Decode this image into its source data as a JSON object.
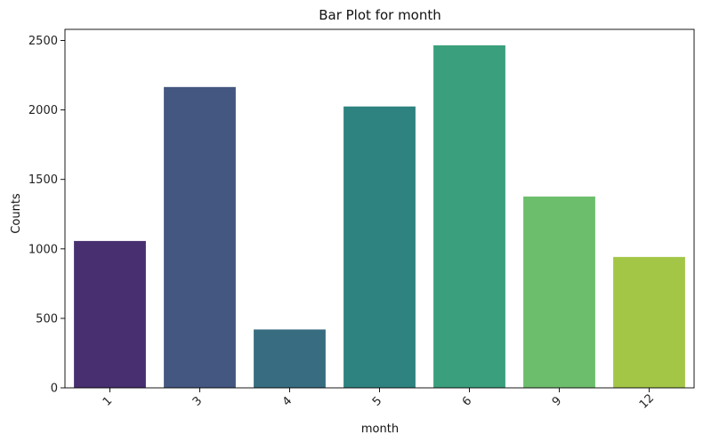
{
  "chart_data": {
    "type": "bar",
    "title": "Bar Plot for month",
    "xlabel": "month",
    "ylabel": "Counts",
    "categories": [
      "1",
      "3",
      "4",
      "5",
      "6",
      "9",
      "12"
    ],
    "values": [
      1057,
      2165,
      420,
      2025,
      2465,
      1377,
      942
    ],
    "colors": [
      "#482f70",
      "#445781",
      "#386c80",
      "#2e8380",
      "#3a9f7c",
      "#6dbe6c",
      "#a3c647"
    ],
    "ylim": [
      0,
      2580
    ],
    "yticks": [
      0,
      500,
      1000,
      1500,
      2000,
      2500
    ],
    "grid": false,
    "legend": "none"
  }
}
